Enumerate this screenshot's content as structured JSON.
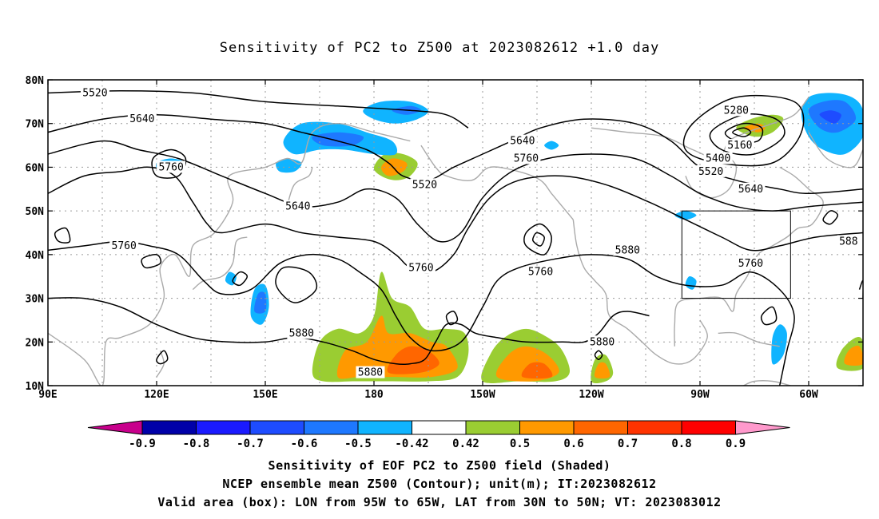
{
  "title": "Sensitivity of PC2 to Z500 at 2023082612 +1.0 day",
  "map": {
    "lon_ticks": [
      "90E",
      "120E",
      "150E",
      "180",
      "150W",
      "120W",
      "90W",
      "60W"
    ],
    "lat_ticks": [
      "80N",
      "70N",
      "60N",
      "50N",
      "40N",
      "30N",
      "20N",
      "10N"
    ],
    "contour_labels": [
      {
        "text": "5520",
        "lon": 103,
        "lat": 77
      },
      {
        "text": "5640",
        "lon": 116,
        "lat": 71
      },
      {
        "text": "5760",
        "lon": 124,
        "lat": 60
      },
      {
        "text": "5760",
        "lon": 111,
        "lat": 42
      },
      {
        "text": "5640",
        "lon": 159,
        "lat": 51
      },
      {
        "text": "5520",
        "lon": 194,
        "lat": 56
      },
      {
        "text": "5640",
        "lon": 221,
        "lat": 66
      },
      {
        "text": "5760",
        "lon": 222,
        "lat": 62
      },
      {
        "text": "5760",
        "lon": 193,
        "lat": 37
      },
      {
        "text": "5760",
        "lon": 226,
        "lat": 36
      },
      {
        "text": "5880",
        "lon": 250,
        "lat": 41
      },
      {
        "text": "5880",
        "lon": 160,
        "lat": 22
      },
      {
        "text": "5880",
        "lon": 179,
        "lat": 13
      },
      {
        "text": "5880",
        "lon": 243,
        "lat": 20
      },
      {
        "text": "5280",
        "lon": 280,
        "lat": 73
      },
      {
        "text": "5160",
        "lon": 281,
        "lat": 65
      },
      {
        "text": "5400",
        "lon": 275,
        "lat": 62
      },
      {
        "text": "5520",
        "lon": 273,
        "lat": 59
      },
      {
        "text": "5640",
        "lon": 284,
        "lat": 55
      },
      {
        "text": "5760",
        "lon": 284,
        "lat": 38
      },
      {
        "text": "588",
        "lon": 311,
        "lat": 43
      }
    ],
    "valid_box": {
      "lon_west": -95,
      "lon_east": -65,
      "lat_south": 30,
      "lat_north": 50
    }
  },
  "colorbar": {
    "labels": [
      "-0.9",
      "-0.8",
      "-0.7",
      "-0.6",
      "-0.5",
      "-0.42",
      "0.42",
      "0.5",
      "0.6",
      "0.7",
      "0.8",
      "0.9"
    ],
    "colors": [
      "#c8008c",
      "#0000a8",
      "#1a1aff",
      "#1e4cff",
      "#1e78ff",
      "#10b4ff",
      "#ffffff",
      "#9acd32",
      "#ff9900",
      "#ff6600",
      "#ff3300",
      "#ff0000",
      "#ff99cc"
    ]
  },
  "captions": {
    "line1": "Sensitivity of EOF PC2 to Z500 field (Shaded)",
    "line2": "NCEP ensemble mean Z500 (Contour); unit(m); IT:2023082612",
    "line3": "Valid area (box): LON from 95W to 65W, LAT from 30N to 50N; VT: 2023083012"
  }
}
